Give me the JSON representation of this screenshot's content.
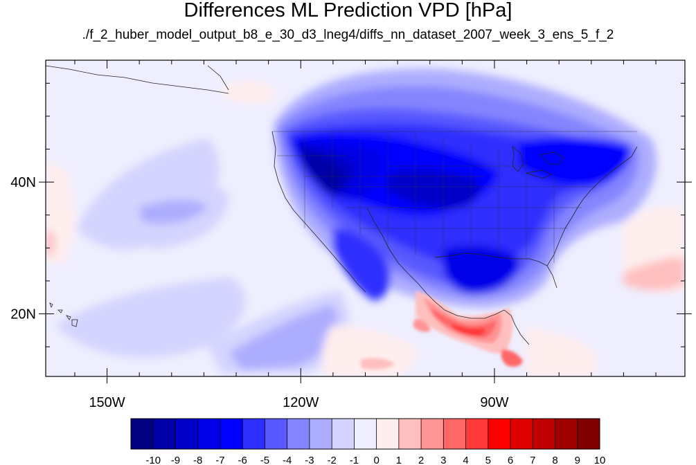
{
  "title": "Differences ML Prediction VPD [hPa]",
  "subtitle": "./f_2_huber_model_output_b8_e_30_d3_lneg4/diffs_nn_dataset_2007_week_3_ens_5_f_2",
  "map": {
    "projection": "cylindrical equidistant",
    "lon_range": [
      -159.5,
      -60.5
    ],
    "lat_range": [
      10.5,
      58.5
    ],
    "x_ticks": [
      {
        "lon": -150,
        "label": "150W"
      },
      {
        "lon": -120,
        "label": "120W"
      },
      {
        "lon": -90,
        "label": "90W"
      }
    ],
    "y_ticks": [
      {
        "lat": 40,
        "label": "40N"
      },
      {
        "lat": 20,
        "label": "20N"
      }
    ]
  },
  "colorbar": {
    "labels": [
      "-10",
      "-9",
      "-8",
      "-7",
      "-6",
      "-5",
      "-4",
      "-3",
      "-2",
      "-1",
      "0",
      "1",
      "2",
      "3",
      "4",
      "5",
      "6",
      "7",
      "8",
      "9",
      "10"
    ],
    "colors": [
      "#000080",
      "#0000a6",
      "#0000c9",
      "#0000e8",
      "#0000ff",
      "#2e2eff",
      "#5959ff",
      "#8585ff",
      "#adadff",
      "#d4d4ff",
      "#eeeeff",
      "#ffeeee",
      "#ffbfbf",
      "#ff9494",
      "#ff6666",
      "#ff3838",
      "#ff0000",
      "#e00000",
      "#bf0000",
      "#9e0000",
      "#800000"
    ]
  },
  "field_regions": [
    {
      "name": "western-us-deep-negative",
      "lon": -116,
      "lat": 38,
      "value": -9
    },
    {
      "name": "southern-plains-negative",
      "lon": -98,
      "lat": 36,
      "value": -7
    },
    {
      "name": "gulf-of-mexico-negative",
      "lon": -92,
      "lat": 26,
      "value": -6
    },
    {
      "name": "eastern-us-negative",
      "lon": -80,
      "lat": 38,
      "value": -4
    },
    {
      "name": "canada-negative",
      "lon": -100,
      "lat": 52,
      "value": -4
    },
    {
      "name": "northeast-pacific-weak-negative",
      "lon": -140,
      "lat": 38,
      "value": -2
    },
    {
      "name": "tropical-pacific-weak-negative",
      "lon": -140,
      "lat": 22,
      "value": -2
    },
    {
      "name": "central-america-positive",
      "lon": -96,
      "lat": 17,
      "value": 5
    },
    {
      "name": "tropical-east-pacific-positive",
      "lon": -110,
      "lat": 14,
      "value": 2
    },
    {
      "name": "western-atlantic-positive",
      "lon": -65,
      "lat": 25,
      "value": 2
    }
  ]
}
